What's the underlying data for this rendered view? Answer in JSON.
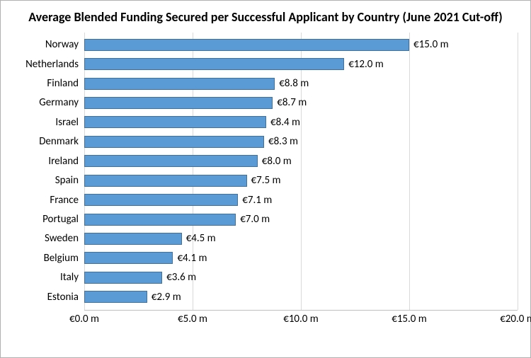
{
  "chart": {
    "type": "bar",
    "title": "Average Blended Funding Secured per Successful Applicant by Country (June 2021 Cut-off)",
    "title_fontsize": 18,
    "label_fontsize": 15,
    "background_color": "#ffffff",
    "border_color": "#b0b0b0",
    "grid_color": "#d9d9d9",
    "axis_line_color": "#bfbfbf",
    "bar_fill": "#5b9bd5",
    "bar_border": "#41719c",
    "text_color": "#000000",
    "xlim": [
      0,
      20
    ],
    "xtick_step": 5,
    "xticks": [
      "€0.0 m",
      "€5.0 m",
      "€10.0 m",
      "€15.0 m",
      "€20.0 m"
    ],
    "categories": [
      "Norway",
      "Netherlands",
      "Finland",
      "Germany",
      "Israel",
      "Denmark",
      "Ireland",
      "Spain",
      "France",
      "Portugal",
      "Sweden",
      "Belgium",
      "Italy",
      "Estonia"
    ],
    "values": [
      15.0,
      12.0,
      8.8,
      8.7,
      8.4,
      8.3,
      8.0,
      7.5,
      7.1,
      7.0,
      4.5,
      4.1,
      3.6,
      2.9
    ],
    "value_labels": [
      "€15.0 m",
      "€12.0 m",
      "€8.8 m",
      "€8.7 m",
      "€8.4 m",
      "€8.3 m",
      "€8.0 m",
      "€7.5 m",
      "€7.1 m",
      "€7.0 m",
      "€4.5 m",
      "€4.1 m",
      "€3.6 m",
      "€2.9 m"
    ]
  }
}
